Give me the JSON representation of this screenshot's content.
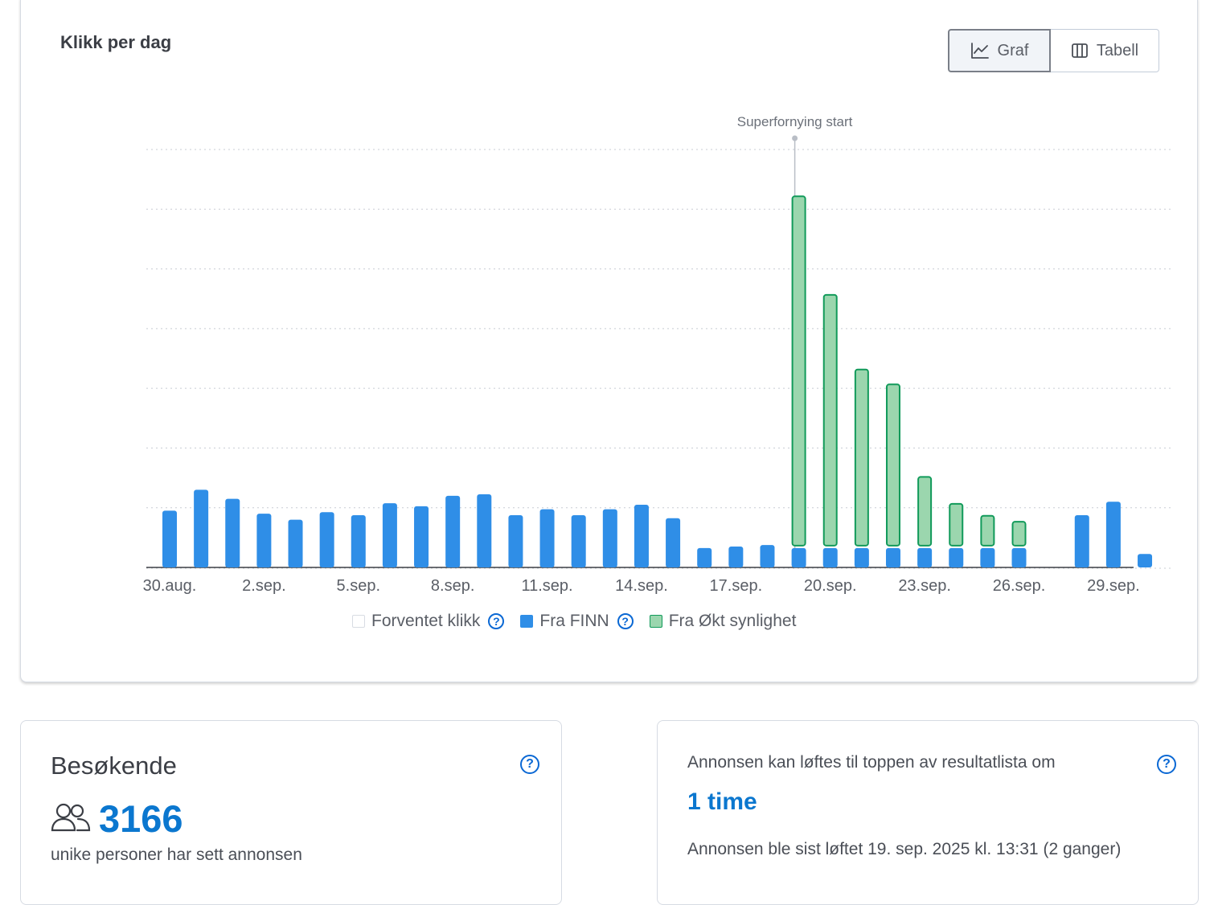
{
  "chart_card": {
    "title": "Klikk per dag",
    "toggle": {
      "graf_label": "Graf",
      "tabell_label": "Tabell",
      "selected": "Graf"
    }
  },
  "chart_data": {
    "type": "bar",
    "stacked": true,
    "title": "Klikk per dag",
    "categories": [
      "30.aug.",
      "31.aug.",
      "1.sep.",
      "2.sep.",
      "3.sep.",
      "4.sep.",
      "5.sep.",
      "6.sep.",
      "7.sep.",
      "8.sep.",
      "9.sep.",
      "10.sep.",
      "11.sep.",
      "12.sep.",
      "13.sep.",
      "14.sep.",
      "15.sep.",
      "16.sep.",
      "17.sep.",
      "18.sep.",
      "19.sep.",
      "20.sep.",
      "21.sep.",
      "22.sep.",
      "23.sep.",
      "24.sep.",
      "25.sep.",
      "26.sep.",
      "27.sep.",
      "28.sep.",
      "29.sep.",
      "30.sep."
    ],
    "tick_labels": [
      "30.aug.",
      "2.sep.",
      "5.sep.",
      "8.sep.",
      "11.sep.",
      "14.sep.",
      "17.sep.",
      "20.sep.",
      "23.sep.",
      "26.sep.",
      "29.sep."
    ],
    "series": [
      {
        "name": "Fra FINN",
        "color": "#2f8ee7",
        "values": [
          19,
          26,
          23,
          18,
          16,
          18.5,
          17.5,
          21.5,
          20.5,
          24,
          24.5,
          17.5,
          19.5,
          17.5,
          19.5,
          21,
          16.5,
          6.5,
          7,
          7.5,
          6.5,
          6.5,
          6.5,
          6.5,
          6.5,
          6.5,
          6.5,
          6.5,
          0,
          17.5,
          22,
          4.5
        ]
      },
      {
        "name": "Fra Økt synlighet",
        "color": "#9bd6ae",
        "border": "#119a5a",
        "values": [
          0,
          0,
          0,
          0,
          0,
          0,
          0,
          0,
          0,
          0,
          0,
          0,
          0,
          0,
          0,
          0,
          0,
          0,
          0,
          0,
          117,
          84,
          59,
          54,
          23,
          14,
          10,
          8,
          0,
          0,
          0,
          0
        ]
      }
    ],
    "legend": [
      {
        "label": "Forventet klikk",
        "help": true
      },
      {
        "label": "Fra FINN",
        "help": true
      },
      {
        "label": "Fra Økt synlighet",
        "help": false
      }
    ],
    "annotation": {
      "label": "Superfornying start",
      "at_category": "19.sep."
    },
    "ylim": [
      0,
      140
    ],
    "grid": true,
    "legend_position": "bottom"
  },
  "visitors": {
    "heading": "Besøkende",
    "count": "3166",
    "subtitle": "unike personer har sett annonsen"
  },
  "boost": {
    "line1": "Annonsen kan løftes til toppen av resultatlista om",
    "time": "1 time",
    "line2": "Annonsen ble sist løftet 19. sep. 2025 kl. 13:31 (2 ganger)"
  }
}
